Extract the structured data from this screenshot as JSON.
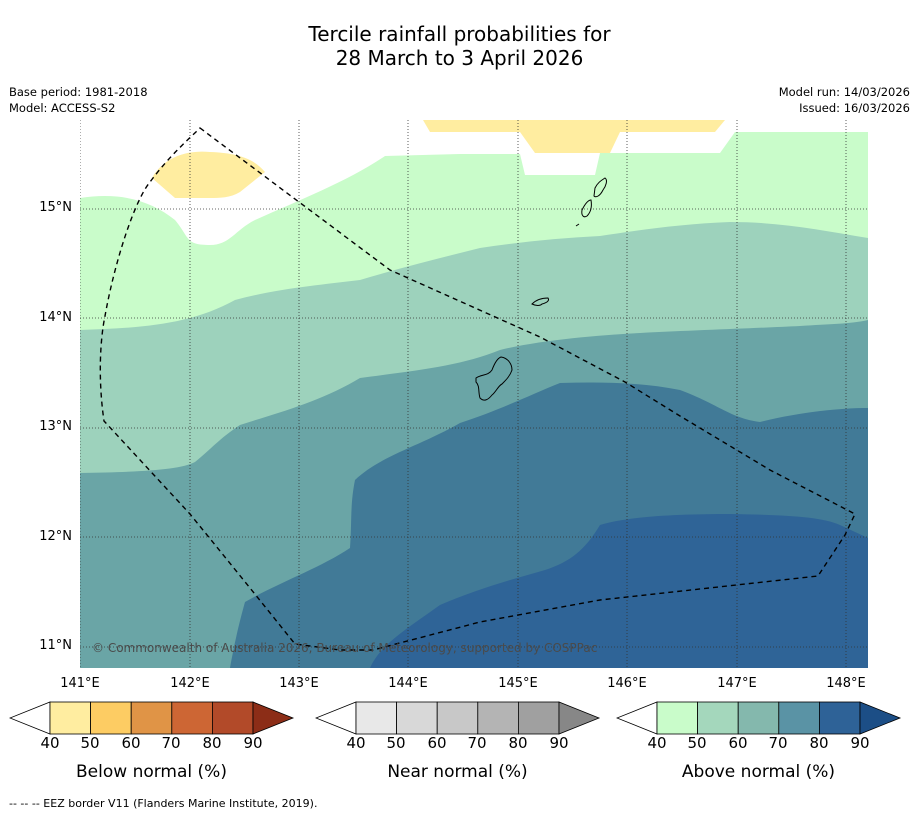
{
  "title": {
    "line1": "Tercile rainfall probabilities for",
    "line2": "28 March to 3 April 2026"
  },
  "meta": {
    "base_period": "Base period: 1981-2018",
    "model": "Model: ACCESS-S2",
    "model_run": "Model run: 14/03/2026",
    "issued": "Issued: 16/03/2026"
  },
  "axes": {
    "lat_labels": [
      "15°N",
      "14°N",
      "13°N",
      "12°N",
      "11°N"
    ],
    "lon_labels": [
      "141°E",
      "142°E",
      "143°E",
      "144°E",
      "145°E",
      "146°E",
      "147°E",
      "148°E"
    ]
  },
  "copyright": "© Commonwealth of Australia 2026, Bureau of Meteorology, supported by COSPPac",
  "colorbars": [
    {
      "label": "Below normal (%)",
      "ticks": [
        "40",
        "50",
        "60",
        "70",
        "80",
        "90"
      ],
      "colors": [
        "#ffffff",
        "#ffeda0",
        "#fdcc63",
        "#e09446",
        "#cd6634",
        "#b24a29",
        "#8c2d17"
      ]
    },
    {
      "label": "Near normal (%)",
      "ticks": [
        "40",
        "50",
        "60",
        "70",
        "80",
        "90"
      ],
      "colors": [
        "#ffffff",
        "#e8e8e8",
        "#d8d8d8",
        "#c8c8c8",
        "#b4b4b4",
        "#a0a0a0",
        "#878787"
      ]
    },
    {
      "label": "Above normal (%)",
      "ticks": [
        "40",
        "50",
        "60",
        "70",
        "80",
        "90"
      ],
      "colors": [
        "#ffffff",
        "#c9fcca",
        "#a4d7bc",
        "#84b8ad",
        "#5a93a5",
        "#2e6297",
        "#1c4e86"
      ]
    }
  ],
  "footnote": "--  --  -- EEZ border V11 (Flanders Marine Institute, 2019).",
  "map_colors": {
    "above_40_50": "#c9fcca",
    "above_50_60": "#9dd2bc",
    "above_60_70": "#6aa5a6",
    "above_70_80": "#417a97",
    "above_80_90": "#2f6497",
    "below_40_50": "#ffeda0"
  }
}
